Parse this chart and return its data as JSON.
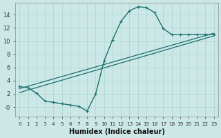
{
  "xlabel": "Humidex (Indice chaleur)",
  "background_color": "#cce8e6",
  "grid_color": "#aad4d0",
  "line_color": "#1a7070",
  "xlim": [
    -0.5,
    23.5
  ],
  "ylim": [
    -1.5,
    15.8
  ],
  "xticks": [
    0,
    1,
    2,
    3,
    4,
    5,
    6,
    7,
    8,
    9,
    10,
    11,
    12,
    13,
    14,
    15,
    16,
    17,
    18,
    19,
    20,
    21,
    22,
    23
  ],
  "yticks": [
    0,
    2,
    4,
    6,
    8,
    10,
    12,
    14
  ],
  "ytick_labels": [
    "-0",
    "2",
    "4",
    "6",
    "8",
    "10",
    "12",
    "14"
  ],
  "curve_x": [
    0,
    1,
    2,
    3,
    4,
    5,
    6,
    7,
    8,
    9,
    10,
    11,
    12,
    13,
    14,
    15,
    16,
    17,
    18,
    19,
    20,
    21,
    22,
    23
  ],
  "curve_y": [
    3.1,
    2.9,
    2.1,
    0.9,
    0.7,
    0.5,
    0.3,
    0.1,
    -0.6,
    2.0,
    7.0,
    10.2,
    13.0,
    14.6,
    15.2,
    15.1,
    14.3,
    11.9,
    11.0,
    11.0,
    11.0,
    11.0,
    11.0,
    11.0
  ],
  "line1_x": [
    0,
    23
  ],
  "line1_y": [
    2.8,
    11.2
  ],
  "line2_x": [
    0,
    23
  ],
  "line2_y": [
    2.2,
    10.8
  ]
}
